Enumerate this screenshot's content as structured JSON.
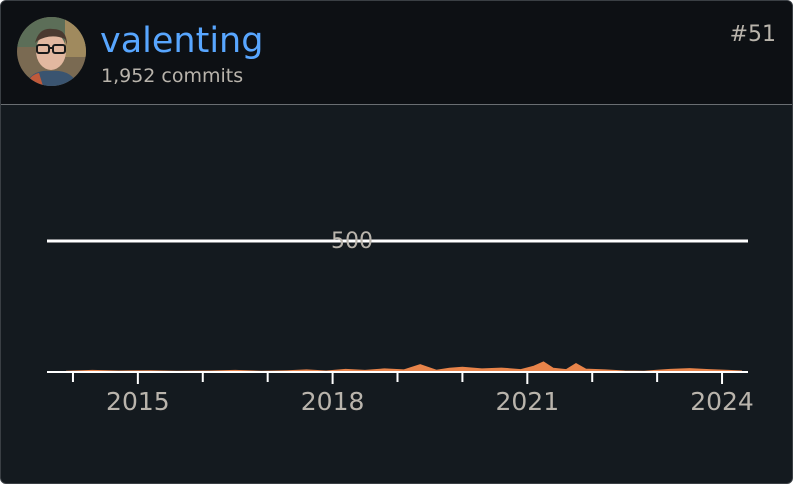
{
  "user": {
    "name": "valenting",
    "commits": "1,952 commits",
    "rank": "#51"
  },
  "colors": {
    "background": "#141a1f",
    "header": "#0d1014",
    "name": "#58a6ff",
    "text": "#b9b4ac",
    "series": "#e8844a",
    "axis": "#ffffff"
  },
  "chart_data": {
    "type": "area",
    "title": "",
    "xlabel": "",
    "ylabel": "",
    "x_ticks": [
      "2015",
      "2018",
      "2021",
      "2024"
    ],
    "y_ticks": [
      "500"
    ],
    "ylim": [
      0,
      500
    ],
    "xlim": [
      2013.6,
      2024.4
    ],
    "grid": true,
    "series": [
      {
        "x": [
          2013.9,
          2014.3,
          2014.7,
          2015.2,
          2015.6,
          2016.1,
          2016.5,
          2016.9,
          2017.3,
          2017.6,
          2017.9,
          2018.2,
          2018.5,
          2018.8,
          2019.1,
          2019.35,
          2019.6,
          2019.8,
          2020.0,
          2020.3,
          2020.6,
          2020.9,
          2021.1,
          2021.25,
          2021.4,
          2021.6,
          2021.75,
          2021.9,
          2022.2,
          2022.5,
          2022.8,
          2023.0,
          2023.2,
          2023.5,
          2023.8,
          2024.1,
          2024.3
        ],
        "values": [
          3,
          6,
          4,
          5,
          3,
          4,
          6,
          3,
          5,
          8,
          4,
          10,
          6,
          12,
          8,
          28,
          7,
          14,
          18,
          12,
          15,
          9,
          22,
          38,
          14,
          9,
          32,
          11,
          8,
          4,
          3,
          7,
          10,
          13,
          9,
          6,
          4
        ]
      }
    ]
  }
}
